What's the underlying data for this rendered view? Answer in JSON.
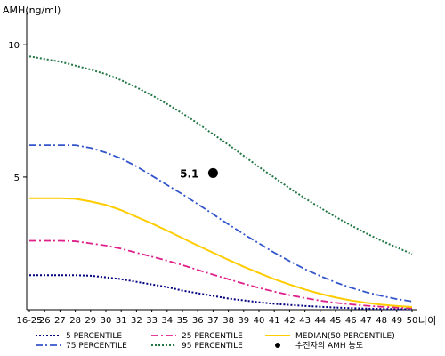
{
  "chart_data": {
    "type": "line",
    "ylabel": "AMH(ng/ml)",
    "xlabel": "나이",
    "yticks": [
      5,
      10
    ],
    "ylim": [
      0,
      11
    ],
    "x": [
      "16-25",
      "26",
      "27",
      "28",
      "29",
      "30",
      "31",
      "32",
      "33",
      "34",
      "35",
      "36",
      "37",
      "38",
      "39",
      "40",
      "41",
      "42",
      "43",
      "44",
      "45",
      "46",
      "47",
      "48",
      "49",
      "50"
    ],
    "series": [
      {
        "name": "5 PERCENTILE",
        "color": "#000080",
        "dash": "2,2",
        "width": 2,
        "values": [
          1.3,
          1.3,
          1.3,
          1.3,
          1.28,
          1.22,
          1.15,
          1.05,
          0.95,
          0.85,
          0.72,
          0.62,
          0.52,
          0.42,
          0.35,
          0.28,
          0.22,
          0.18,
          0.14,
          0.11,
          0.08,
          0.06,
          0.04,
          0.03,
          0.02,
          0.02
        ]
      },
      {
        "name": "25 PERCENTILE",
        "color": "#e0208a",
        "dash": "8,3,2,3",
        "width": 1.8,
        "values": [
          2.6,
          2.6,
          2.6,
          2.58,
          2.5,
          2.42,
          2.3,
          2.15,
          2.0,
          1.85,
          1.68,
          1.5,
          1.32,
          1.15,
          0.98,
          0.82,
          0.68,
          0.55,
          0.44,
          0.34,
          0.26,
          0.2,
          0.15,
          0.11,
          0.08,
          0.06
        ]
      },
      {
        "name": "MEDIAN(50 PERCENTILE)",
        "color": "#ffcc00",
        "dash": "",
        "width": 2,
        "values": [
          4.2,
          4.2,
          4.2,
          4.18,
          4.08,
          3.95,
          3.75,
          3.5,
          3.25,
          2.98,
          2.7,
          2.42,
          2.15,
          1.88,
          1.62,
          1.38,
          1.15,
          0.95,
          0.76,
          0.6,
          0.46,
          0.35,
          0.26,
          0.19,
          0.14,
          0.1
        ]
      },
      {
        "name": "75 PERCENTILE",
        "color": "#3355cc",
        "dash": "8,3,2,3",
        "width": 1.8,
        "values": [
          6.2,
          6.2,
          6.2,
          6.2,
          6.1,
          5.92,
          5.7,
          5.4,
          5.05,
          4.7,
          4.35,
          3.98,
          3.6,
          3.22,
          2.85,
          2.5,
          2.15,
          1.83,
          1.53,
          1.27,
          1.03,
          0.83,
          0.66,
          0.52,
          0.4,
          0.31
        ]
      },
      {
        "name": "95 PERCENTILE",
        "color": "#227744",
        "dash": "2,2",
        "width": 2,
        "values": [
          9.55,
          9.45,
          9.35,
          9.2,
          9.05,
          8.88,
          8.65,
          8.38,
          8.08,
          7.75,
          7.4,
          7.02,
          6.62,
          6.22,
          5.8,
          5.38,
          4.98,
          4.58,
          4.2,
          3.84,
          3.5,
          3.18,
          2.88,
          2.6,
          2.35,
          2.1
        ]
      }
    ],
    "points": [
      {
        "name": "수진자의 AMH 농도",
        "x": "37",
        "y": 5.15,
        "label": "5.1",
        "color": "#000000"
      }
    ],
    "legend_position": "bottom",
    "grid": false
  }
}
